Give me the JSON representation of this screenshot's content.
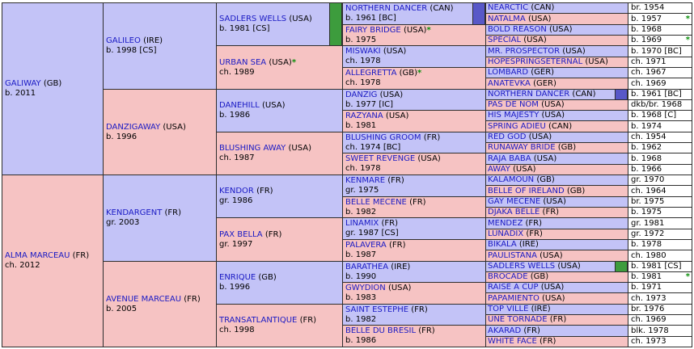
{
  "colors": {
    "male": "#c3c3f7",
    "female": "#f6c3c3",
    "link": "#1a1ac4",
    "star": "#0b8f0b",
    "marker_green": "#3d9c3d",
    "marker_blue": "#5858c8"
  },
  "gen1": [
    {
      "name": "GALIWAY",
      "country": "(GB)",
      "info": "b. 2011"
    },
    {
      "name": "ALMA MARCEAU",
      "country": "(FR)",
      "info": "ch. 2012"
    }
  ],
  "gen2": [
    {
      "name": "GALILEO",
      "country": "(IRE)",
      "info": "b. 1998 [CS]"
    },
    {
      "name": "DANZIGAWAY",
      "country": "(USA)",
      "info": "b. 1996"
    },
    {
      "name": "KENDARGENT",
      "country": "(FR)",
      "info": "gr. 2003"
    },
    {
      "name": "AVENUE MARCEAU",
      "country": "(FR)",
      "info": "b. 2005"
    }
  ],
  "gen3": [
    {
      "name": "SADLERS WELLS",
      "country": "(USA)",
      "info": "b. 1981 [CS]",
      "star": ""
    },
    {
      "name": "URBAN SEA",
      "country": "(USA)",
      "info": "ch. 1989",
      "star": "*"
    },
    {
      "name": "DANEHILL",
      "country": "(USA)",
      "info": "b. 1986",
      "star": ""
    },
    {
      "name": "BLUSHING AWAY",
      "country": "(USA)",
      "info": "ch. 1987",
      "star": ""
    },
    {
      "name": "KENDOR",
      "country": "(FR)",
      "info": "gr. 1986",
      "star": ""
    },
    {
      "name": "PAX BELLA",
      "country": "(FR)",
      "info": "gr. 1997",
      "star": ""
    },
    {
      "name": "ENRIQUE",
      "country": "(GB)",
      "info": "b. 1996",
      "star": ""
    },
    {
      "name": "TRANSATLANTIQUE",
      "country": "(FR)",
      "info": "ch. 1998",
      "star": ""
    }
  ],
  "gen4": [
    {
      "name": "NORTHERN DANCER",
      "country": "(CAN)",
      "info": "b. 1961 [BC]",
      "star": ""
    },
    {
      "name": "FAIRY BRIDGE",
      "country": "(USA)",
      "info": "b. 1975",
      "star": "*"
    },
    {
      "name": "MISWAKI",
      "country": "(USA)",
      "info": "ch. 1978",
      "star": ""
    },
    {
      "name": "ALLEGRETTA",
      "country": "(GB)",
      "info": "ch. 1978",
      "star": "*"
    },
    {
      "name": "DANZIG",
      "country": "(USA)",
      "info": "b. 1977 [IC]",
      "star": ""
    },
    {
      "name": "RAZYANA",
      "country": "(USA)",
      "info": "b. 1981",
      "star": ""
    },
    {
      "name": "BLUSHING GROOM",
      "country": "(FR)",
      "info": "ch. 1974 [BC]",
      "star": ""
    },
    {
      "name": "SWEET REVENGE",
      "country": "(USA)",
      "info": "ch. 1978",
      "star": ""
    },
    {
      "name": "KENMARE",
      "country": "(FR)",
      "info": "gr. 1975",
      "star": ""
    },
    {
      "name": "BELLE MECENE",
      "country": "(FR)",
      "info": "b. 1982",
      "star": ""
    },
    {
      "name": "LINAMIX",
      "country": "(FR)",
      "info": "gr. 1987 [CS]",
      "star": ""
    },
    {
      "name": "PALAVERA",
      "country": "(FR)",
      "info": "b. 1987",
      "star": ""
    },
    {
      "name": "BARATHEA",
      "country": "(IRE)",
      "info": "b. 1990",
      "star": ""
    },
    {
      "name": "GWYDION",
      "country": "(USA)",
      "info": "b. 1983",
      "star": ""
    },
    {
      "name": "SAINT ESTEPHE",
      "country": "(FR)",
      "info": "b. 1982",
      "star": ""
    },
    {
      "name": "BELLE DU BRESIL",
      "country": "(FR)",
      "info": "b. 1986",
      "star": ""
    }
  ],
  "gen5": [
    {
      "name": "NEARCTIC",
      "country": "(CAN)",
      "info": "br. 1954",
      "star": ""
    },
    {
      "name": "NATALMA",
      "country": "(USA)",
      "info": "b. 1957",
      "star": "*"
    },
    {
      "name": "BOLD REASON",
      "country": "(USA)",
      "info": "b. 1968",
      "star": ""
    },
    {
      "name": "SPECIAL",
      "country": "(USA)",
      "info": "b. 1969",
      "star": "*"
    },
    {
      "name": "MR. PROSPECTOR",
      "country": "(USA)",
      "info": "b. 1970 [BC]",
      "star": ""
    },
    {
      "name": "HOPESPRINGSETERNAL",
      "country": "(USA)",
      "info": "ch. 1971",
      "star": ""
    },
    {
      "name": "LOMBARD",
      "country": "(GER)",
      "info": "ch. 1967",
      "star": ""
    },
    {
      "name": "ANATEVKA",
      "country": "(GER)",
      "info": "ch. 1969",
      "star": ""
    },
    {
      "name": "NORTHERN DANCER",
      "country": "(CAN)",
      "info": "b. 1961 [BC]",
      "star": ""
    },
    {
      "name": "PAS DE NOM",
      "country": "(USA)",
      "info": "dkb/br. 1968",
      "star": ""
    },
    {
      "name": "HIS MAJESTY",
      "country": "(USA)",
      "info": "b. 1968 [C]",
      "star": ""
    },
    {
      "name": "SPRING ADIEU",
      "country": "(CAN)",
      "info": "b. 1974",
      "star": ""
    },
    {
      "name": "RED GOD",
      "country": "(USA)",
      "info": "ch. 1954",
      "star": ""
    },
    {
      "name": "RUNAWAY BRIDE",
      "country": "(GB)",
      "info": "b. 1962",
      "star": ""
    },
    {
      "name": "RAJA BABA",
      "country": "(USA)",
      "info": "b. 1968",
      "star": ""
    },
    {
      "name": "AWAY",
      "country": "(USA)",
      "info": "b. 1966",
      "star": ""
    },
    {
      "name": "KALAMOUN",
      "country": "(GB)",
      "info": "gr. 1970",
      "star": ""
    },
    {
      "name": "BELLE OF IRELAND",
      "country": "(GB)",
      "info": "ch. 1964",
      "star": ""
    },
    {
      "name": "GAY MECENE",
      "country": "(USA)",
      "info": "br. 1975",
      "star": ""
    },
    {
      "name": "DJAKA BELLE",
      "country": "(FR)",
      "info": "b. 1975",
      "star": ""
    },
    {
      "name": "MENDEZ",
      "country": "(FR)",
      "info": "gr. 1981",
      "star": ""
    },
    {
      "name": "LUNADIX",
      "country": "(FR)",
      "info": "gr. 1972",
      "star": ""
    },
    {
      "name": "BIKALA",
      "country": "(IRE)",
      "info": "b. 1978",
      "star": ""
    },
    {
      "name": "PAULISTANA",
      "country": "(USA)",
      "info": "ch. 1980",
      "star": ""
    },
    {
      "name": "SADLERS WELLS",
      "country": "(USA)",
      "info": "b. 1981 [CS]",
      "star": ""
    },
    {
      "name": "BROCADE",
      "country": "(GB)",
      "info": "b. 1981",
      "star": "*"
    },
    {
      "name": "RAISE A CUP",
      "country": "(USA)",
      "info": "b. 1971",
      "star": ""
    },
    {
      "name": "PAPAMIENTO",
      "country": "(USA)",
      "info": "ch. 1973",
      "star": ""
    },
    {
      "name": "TOP VILLE",
      "country": "(IRE)",
      "info": "br. 1976",
      "star": ""
    },
    {
      "name": "UNE TORNADE",
      "country": "(FR)",
      "info": "ch. 1969",
      "star": ""
    },
    {
      "name": "AKARAD",
      "country": "(FR)",
      "info": "blk. 1978",
      "star": ""
    },
    {
      "name": "WHITE FACE",
      "country": "(FR)",
      "info": "ch. 1973",
      "star": ""
    }
  ]
}
